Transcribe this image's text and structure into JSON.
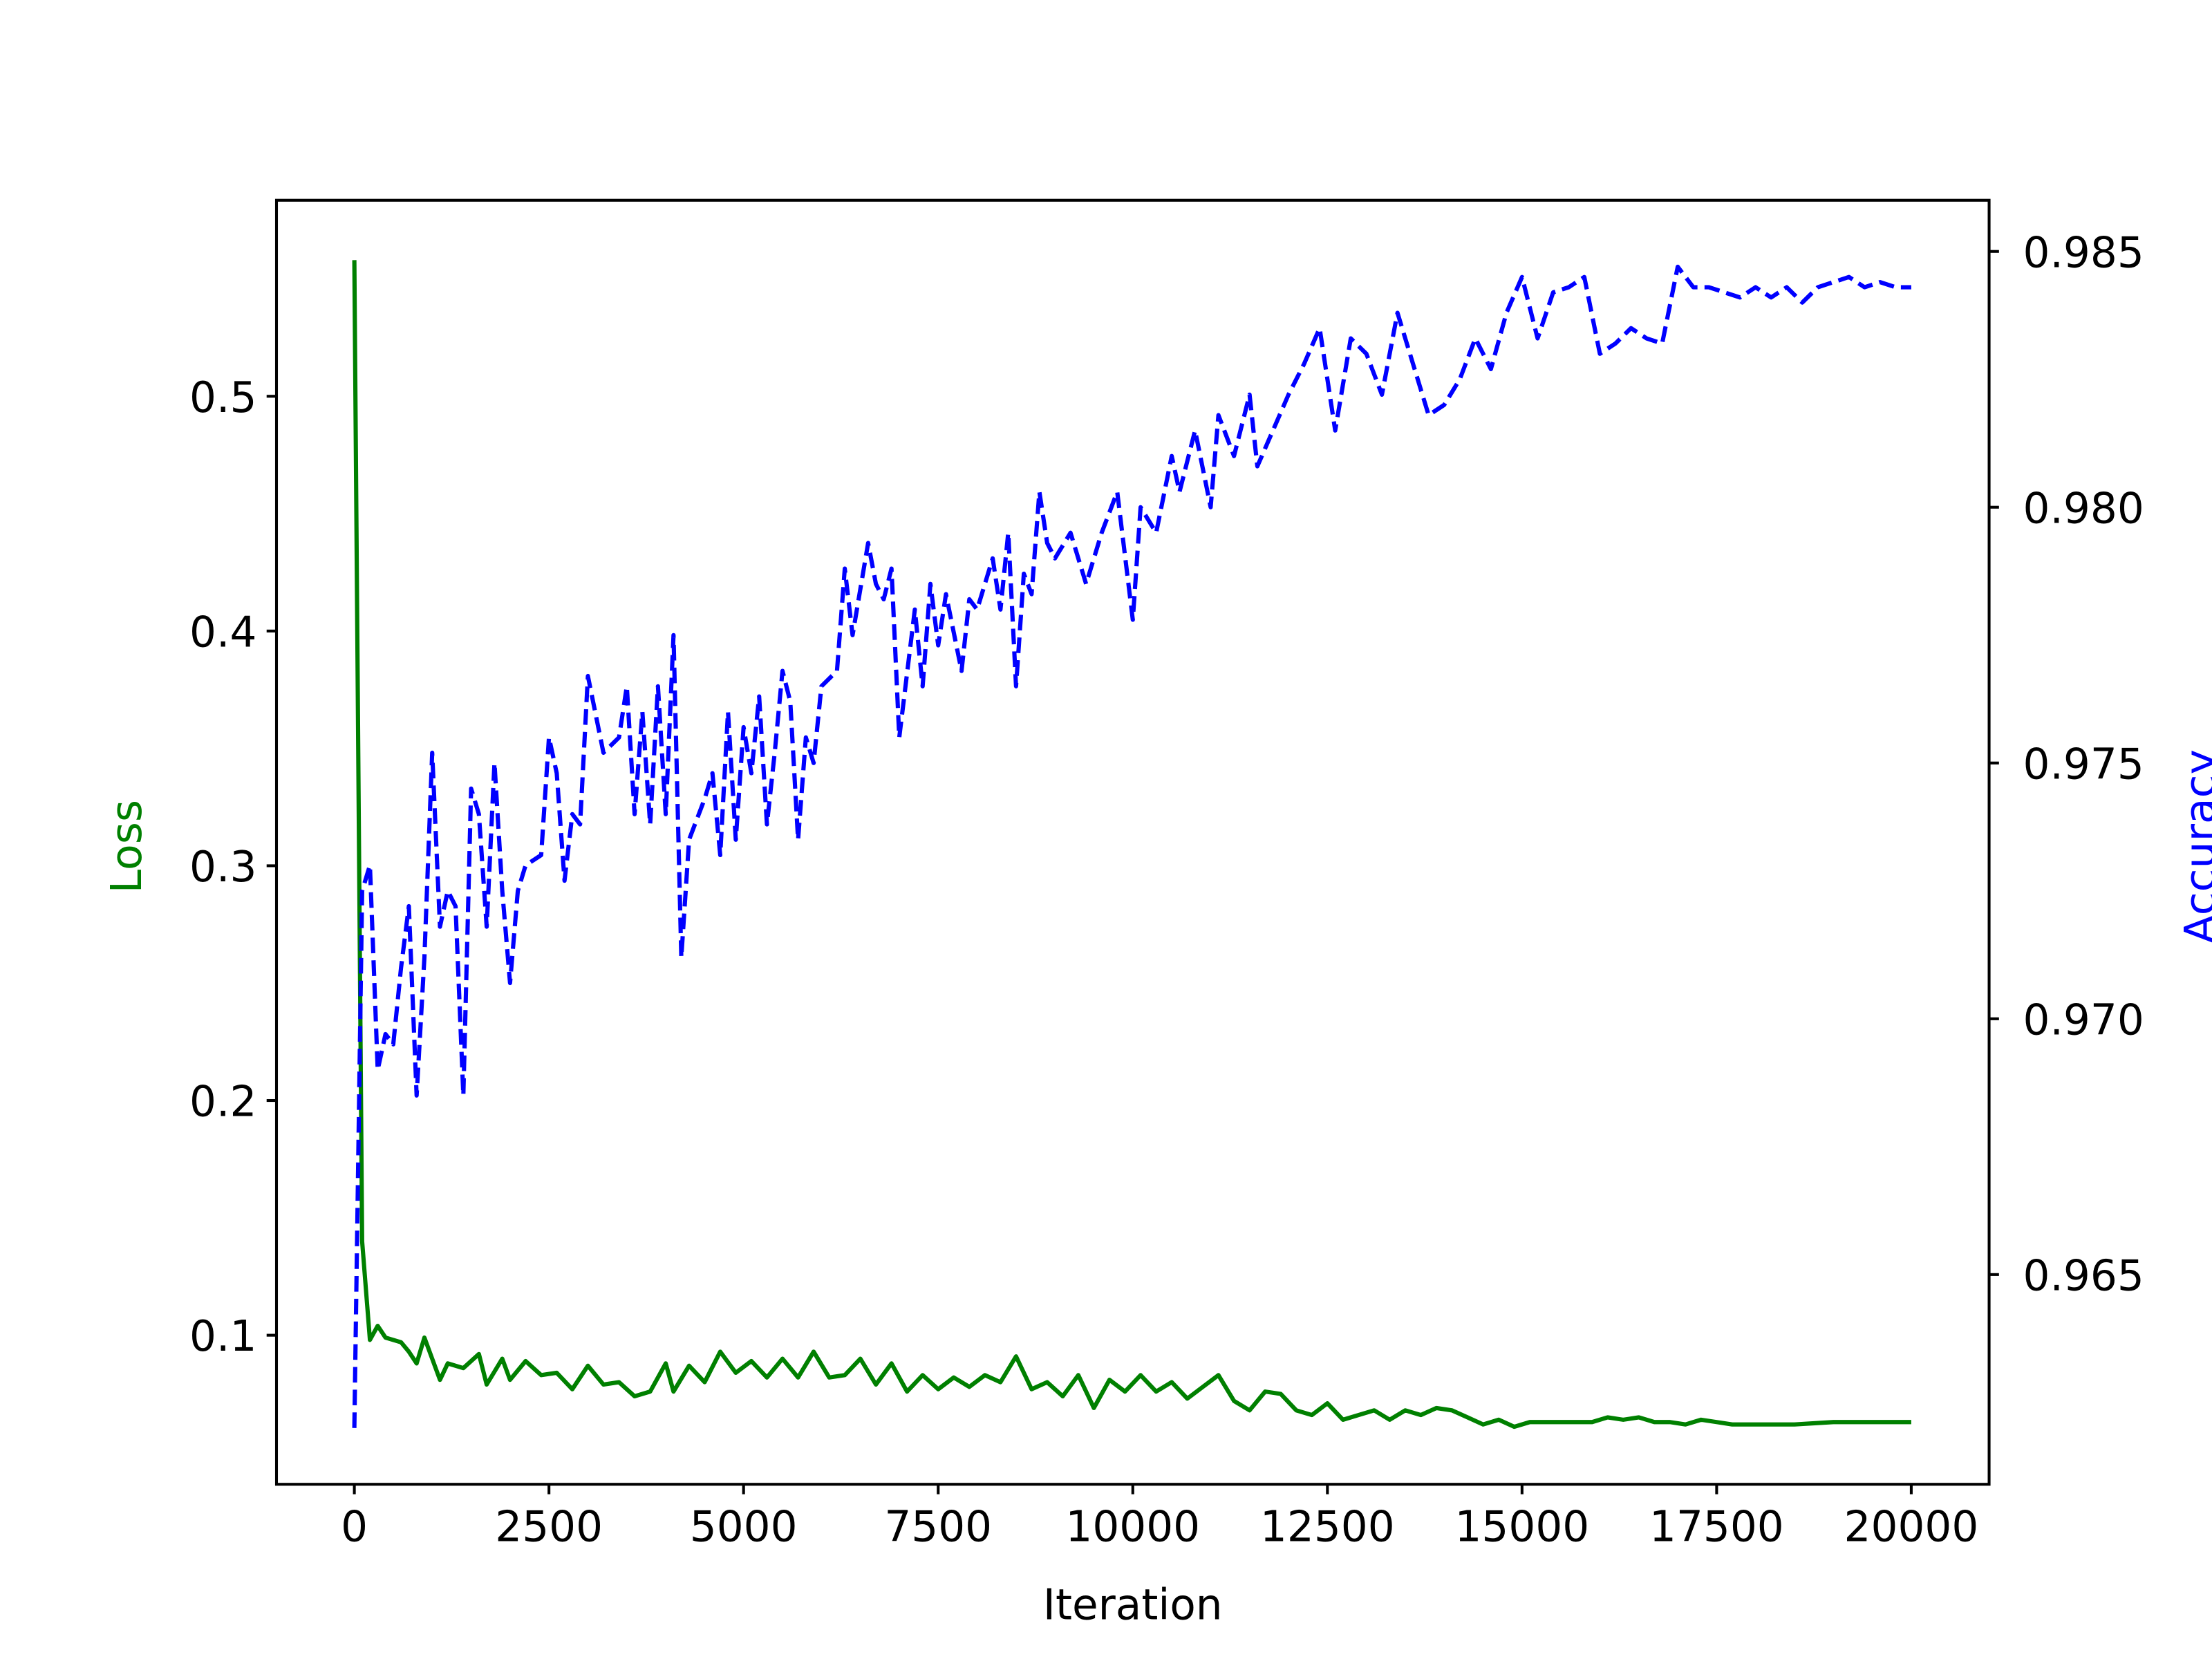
{
  "chart_data": {
    "type": "line",
    "xlabel": "Iteration",
    "ylabel": "Loss",
    "y2label": "Accuracy",
    "xlim": [
      -1000,
      21000
    ],
    "xticks": [
      0,
      2500,
      5000,
      7500,
      10000,
      12500,
      15000,
      17500,
      20000
    ],
    "ylim": [
      0.0365,
      0.5835
    ],
    "yticks": [
      0.1,
      0.2,
      0.3,
      0.4,
      0.5
    ],
    "y2lim": [
      0.9609,
      0.986
    ],
    "y2ticks": [
      0.965,
      {
        "value": 0.97,
        "label": "0.970"
      },
      0.975,
      {
        "value": 0.98,
        "label": "0.980"
      },
      0.985
    ],
    "series": [
      {
        "name": "Loss",
        "color": "green",
        "axis": "y",
        "dashed": false,
        "x": [
          0,
          100,
          200,
          300,
          400,
          600,
          700,
          800,
          900,
          1100,
          1200,
          1400,
          1600,
          1700,
          1900,
          2000,
          2200,
          2400,
          2600,
          2800,
          3000,
          3200,
          3400,
          3600,
          3800,
          4000,
          4100,
          4300,
          4500,
          4700,
          4900,
          5100,
          5300,
          5500,
          5700,
          5900,
          6100,
          6300,
          6500,
          6700,
          6900,
          7100,
          7300,
          7500,
          7700,
          7900,
          8100,
          8300,
          8500,
          8700,
          8900,
          9100,
          9300,
          9500,
          9700,
          9900,
          10100,
          10300,
          10500,
          10700,
          10900,
          11100,
          11300,
          11500,
          11700,
          11900,
          12100,
          12300,
          12500,
          12700,
          12900,
          13100,
          13300,
          13500,
          13700,
          13900,
          14100,
          14300,
          14500,
          14700,
          14900,
          15100,
          15300,
          15500,
          15700,
          15900,
          16100,
          16300,
          16500,
          16700,
          16900,
          17100,
          17300,
          17500,
          17700,
          18000,
          18500,
          19000,
          19500,
          20000
        ],
        "values": [
          0.558,
          0.14,
          0.098,
          0.104,
          0.099,
          0.097,
          0.093,
          0.088,
          0.099,
          0.081,
          0.088,
          0.086,
          0.092,
          0.079,
          0.09,
          0.081,
          0.089,
          0.083,
          0.084,
          0.077,
          0.087,
          0.079,
          0.08,
          0.074,
          0.076,
          0.088,
          0.076,
          0.087,
          0.08,
          0.093,
          0.084,
          0.089,
          0.082,
          0.09,
          0.082,
          0.093,
          0.082,
          0.083,
          0.09,
          0.079,
          0.088,
          0.076,
          0.083,
          0.077,
          0.082,
          0.078,
          0.083,
          0.08,
          0.091,
          0.077,
          0.08,
          0.074,
          0.083,
          0.069,
          0.081,
          0.076,
          0.083,
          0.076,
          0.08,
          0.073,
          0.078,
          0.083,
          0.072,
          0.068,
          0.076,
          0.075,
          0.068,
          0.066,
          0.071,
          0.064,
          0.066,
          0.068,
          0.064,
          0.068,
          0.066,
          0.069,
          0.068,
          0.065,
          0.062,
          0.064,
          0.061,
          0.063,
          0.063,
          0.063,
          0.063,
          0.063,
          0.065,
          0.064,
          0.065,
          0.063,
          0.063,
          0.062,
          0.064,
          0.063,
          0.062,
          0.062,
          0.062,
          0.063,
          0.063,
          0.063
        ]
      },
      {
        "name": "Accuracy",
        "color": "blue",
        "axis": "y2",
        "dashed": true,
        "x": [
          0,
          100,
          200,
          300,
          400,
          500,
          600,
          700,
          800,
          900,
          1000,
          1100,
          1200,
          1300,
          1400,
          1500,
          1600,
          1700,
          1800,
          1900,
          2000,
          2100,
          2200,
          2400,
          2500,
          2600,
          2700,
          2800,
          2900,
          3000,
          3200,
          3400,
          3500,
          3600,
          3700,
          3800,
          3900,
          4000,
          4100,
          4200,
          4300,
          4500,
          4600,
          4700,
          4800,
          4900,
          5000,
          5100,
          5200,
          5300,
          5400,
          5500,
          5600,
          5700,
          5800,
          5900,
          6000,
          6200,
          6300,
          6400,
          6600,
          6700,
          6800,
          6900,
          7000,
          7200,
          7300,
          7400,
          7500,
          7600,
          7800,
          7900,
          8000,
          8200,
          8300,
          8400,
          8500,
          8600,
          8700,
          8800,
          8900,
          9000,
          9200,
          9400,
          9600,
          9800,
          10000,
          10100,
          10300,
          10500,
          10600,
          10800,
          11000,
          11100,
          11300,
          11500,
          11600,
          11800,
          12000,
          12200,
          12400,
          12600,
          12800,
          13000,
          13200,
          13400,
          13600,
          13800,
          14000,
          14200,
          14400,
          14600,
          14800,
          15000,
          15200,
          15400,
          15600,
          15800,
          16000,
          16200,
          16400,
          16600,
          16800,
          17000,
          17200,
          17400,
          17600,
          17800,
          18000,
          18200,
          18400,
          18600,
          18800,
          19000,
          19200,
          19400,
          19600,
          19800,
          20000
        ],
        "values": [
          0.962,
          0.9725,
          0.973,
          0.969,
          0.9697,
          0.9695,
          0.971,
          0.9722,
          0.9685,
          0.9712,
          0.9752,
          0.9718,
          0.9725,
          0.9722,
          0.9685,
          0.9745,
          0.974,
          0.9718,
          0.975,
          0.9725,
          0.9707,
          0.9725,
          0.973,
          0.9732,
          0.9755,
          0.9748,
          0.9727,
          0.974,
          0.9738,
          0.9767,
          0.9752,
          0.9755,
          0.9765,
          0.974,
          0.976,
          0.9738,
          0.9765,
          0.974,
          0.9775,
          0.9712,
          0.9735,
          0.9743,
          0.9748,
          0.9732,
          0.976,
          0.9735,
          0.9757,
          0.9748,
          0.9763,
          0.9738,
          0.9752,
          0.9768,
          0.9762,
          0.9735,
          0.9755,
          0.975,
          0.9765,
          0.9768,
          0.9788,
          0.9775,
          0.9793,
          0.9785,
          0.9782,
          0.9788,
          0.9755,
          0.978,
          0.9765,
          0.9785,
          0.9773,
          0.9783,
          0.9768,
          0.9782,
          0.978,
          0.979,
          0.978,
          0.9795,
          0.9765,
          0.9787,
          0.9783,
          0.9803,
          0.9793,
          0.979,
          0.9795,
          0.9785,
          0.9795,
          0.9803,
          0.9778,
          0.98,
          0.9795,
          0.981,
          0.9803,
          0.9815,
          0.98,
          0.9818,
          0.981,
          0.9822,
          0.9808,
          0.9815,
          0.9822,
          0.9828,
          0.9835,
          0.9815,
          0.9833,
          0.983,
          0.9822,
          0.9838,
          0.9828,
          0.9818,
          0.982,
          0.9825,
          0.9833,
          0.9827,
          0.9838,
          0.9845,
          0.9833,
          0.9842,
          0.9843,
          0.9845,
          0.983,
          0.9832,
          0.9835,
          0.9833,
          0.9832,
          0.9847,
          0.9843,
          0.9843,
          0.9842,
          0.9841,
          0.9843,
          0.9841,
          0.9843,
          0.984,
          0.9843,
          0.9844,
          0.9845,
          0.9843,
          0.9844,
          0.9843,
          0.9843
        ]
      }
    ]
  }
}
